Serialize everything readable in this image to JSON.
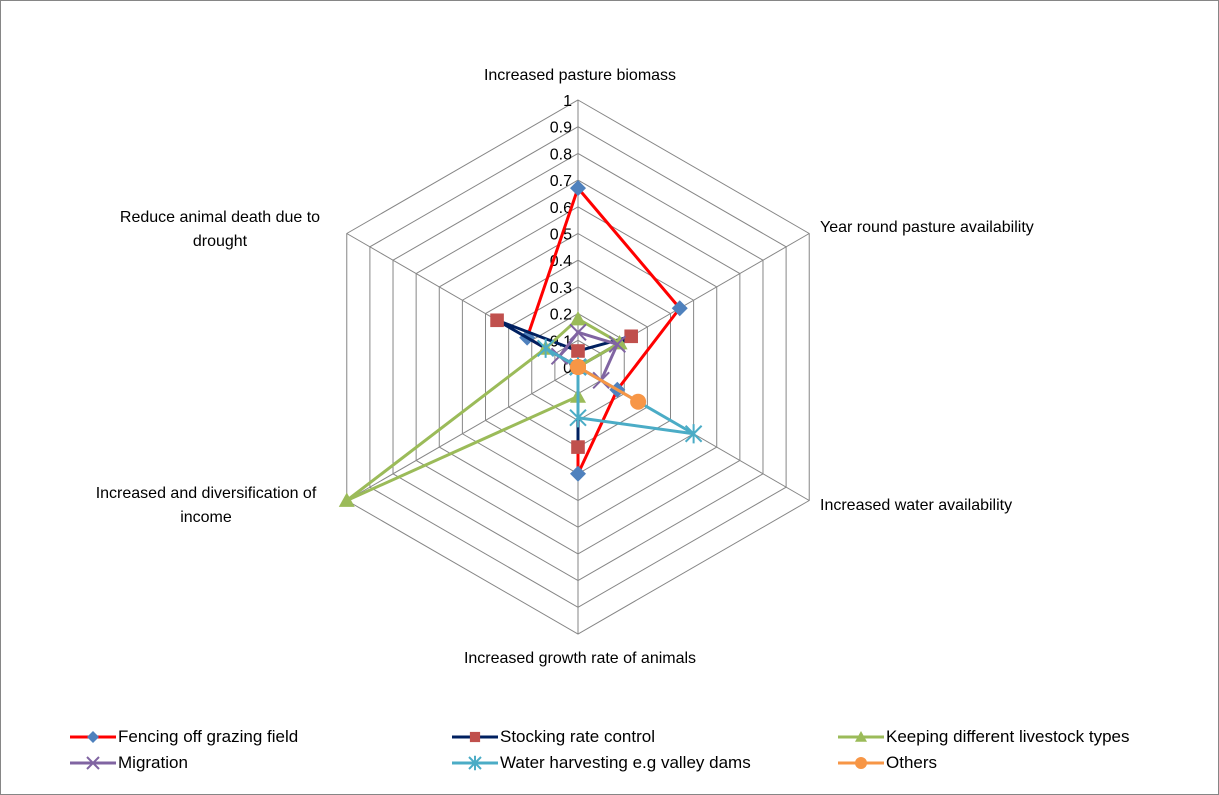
{
  "chart_data": {
    "type": "radar",
    "title": "",
    "axes": [
      "Increased pasture biomass",
      "Year round pasture availability",
      "Increased water availability",
      "Increased growth rate of animals",
      "Increased and diversification of income",
      "Reduce animal death due to drought"
    ],
    "axis_label_lines": [
      [
        "Increased pasture biomass"
      ],
      [
        "Year round pasture availability"
      ],
      [
        "Increased water availability"
      ],
      [
        "Increased growth rate of animals"
      ],
      [
        "Increased and diversification of",
        "income"
      ],
      [
        "Reduce animal death due to",
        "drought"
      ]
    ],
    "ticks": [
      "0",
      "0.1",
      "0.2",
      "0.3",
      "0.4",
      "0.5",
      "0.6",
      "0.7",
      "0.8",
      "0.9",
      "1"
    ],
    "range": [
      0,
      1
    ],
    "grid": true,
    "legend_position": "bottom",
    "series": [
      {
        "name": "Fencing off grazing field",
        "values": [
          0.67,
          0.44,
          0.17,
          0.4,
          0,
          0.22
        ],
        "line": "#FF0000",
        "marker": "diamond",
        "marker_color": "#4F81BD"
      },
      {
        "name": "Stocking rate control",
        "values": [
          0.06,
          0.23,
          0,
          0.3,
          0,
          0.35
        ],
        "line": "#002060",
        "marker": "square",
        "marker_color": "#C0504D"
      },
      {
        "name": "Keeping different livestock types",
        "values": [
          0.18,
          0.18,
          0,
          0.11,
          1.0,
          0.14
        ],
        "line": "#9BBB59",
        "marker": "triangle",
        "marker_color": "#9BBB59"
      },
      {
        "name": "Migration",
        "values": [
          0.13,
          0.17,
          0.1,
          0,
          0,
          0.08
        ],
        "line": "#8064A2",
        "marker": "x",
        "marker_color": "#8064A2"
      },
      {
        "name": "Water harvesting e.g valley dams",
        "values": [
          0,
          0,
          0.5,
          0.19,
          0,
          0.14
        ],
        "line": "#4BACC6",
        "marker": "star",
        "marker_color": "#4BACC6"
      },
      {
        "name": "Others",
        "values": [
          0,
          0,
          0.26,
          0,
          0,
          0
        ],
        "line": "#F79646",
        "marker": "circle",
        "marker_color": "#F79646"
      }
    ]
  }
}
